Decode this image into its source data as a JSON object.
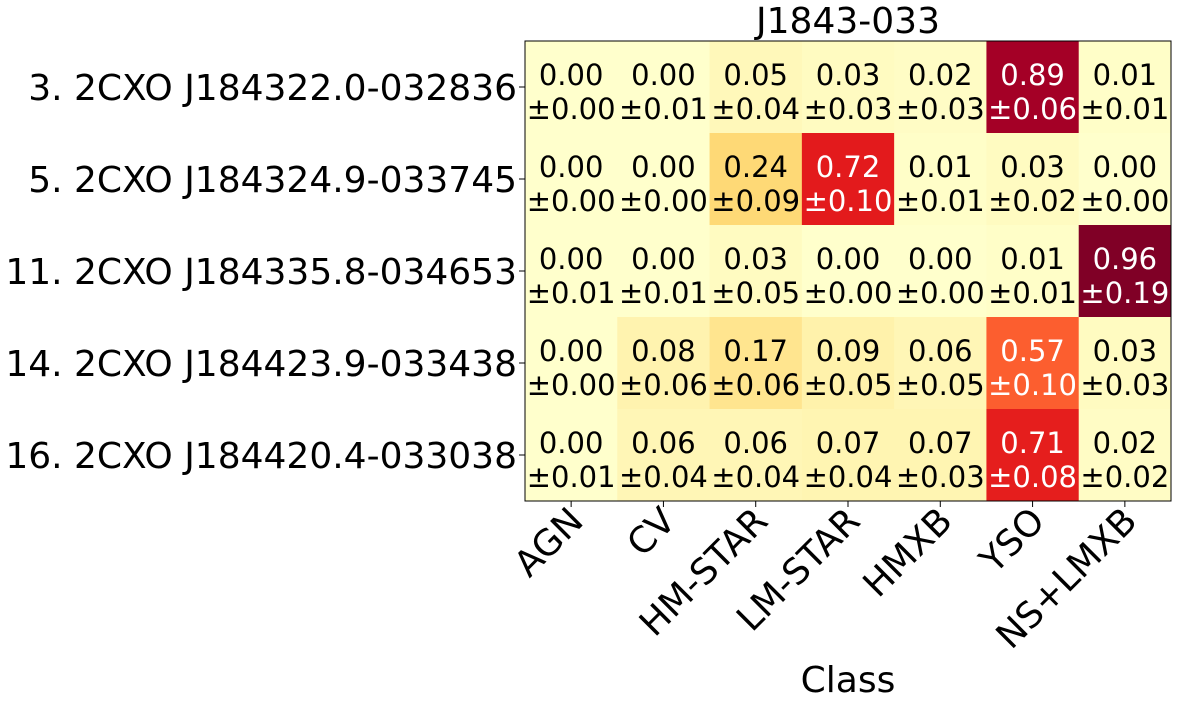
{
  "chart_data": {
    "type": "heatmap",
    "title": "J1843-033",
    "xlabel": "Class",
    "ylabel": "",
    "x_categories": [
      "AGN",
      "CV",
      "HM-STAR",
      "LM-STAR",
      "HMXB",
      "YSO",
      "NS+LMXB"
    ],
    "y_categories": [
      "3. 2CXO J184322.0-032836",
      "5. 2CXO J184324.9-033745",
      "11. 2CXO J184335.8-034653",
      "14. 2CXO J184423.9-033438",
      "16. 2CXO J184420.4-033038"
    ],
    "values": [
      [
        0.0,
        0.0,
        0.05,
        0.03,
        0.02,
        0.89,
        0.01
      ],
      [
        0.0,
        0.0,
        0.24,
        0.72,
        0.01,
        0.03,
        0.0
      ],
      [
        0.0,
        0.0,
        0.03,
        0.0,
        0.0,
        0.01,
        0.96
      ],
      [
        0.0,
        0.08,
        0.17,
        0.09,
        0.06,
        0.57,
        0.03
      ],
      [
        0.0,
        0.06,
        0.06,
        0.07,
        0.07,
        0.71,
        0.02
      ]
    ],
    "errors": [
      [
        0.0,
        0.01,
        0.04,
        0.03,
        0.03,
        0.06,
        0.01
      ],
      [
        0.0,
        0.0,
        0.09,
        0.1,
        0.01,
        0.02,
        0.0
      ],
      [
        0.01,
        0.01,
        0.05,
        0.0,
        0.0,
        0.01,
        0.19
      ],
      [
        0.0,
        0.06,
        0.06,
        0.05,
        0.05,
        0.1,
        0.03
      ],
      [
        0.01,
        0.04,
        0.04,
        0.04,
        0.03,
        0.08,
        0.02
      ]
    ],
    "colormap": "YlOrRd",
    "grid": false,
    "legend": "none"
  }
}
